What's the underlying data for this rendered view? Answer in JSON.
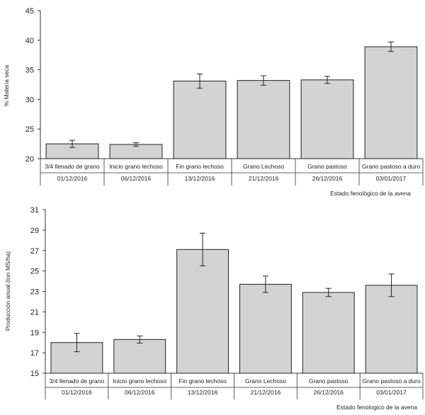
{
  "chart_data": [
    {
      "type": "bar",
      "ylabel": "% Materia seca",
      "xlabel": "Estado fenológico de la avena",
      "ylim": [
        20,
        45
      ],
      "yticks": [
        20,
        25,
        30,
        35,
        40,
        45
      ],
      "categories": [
        "3/4 llenado de grano",
        "Inicio grano lechoso",
        "Fin grano lechoso",
        "Grano Lechoso",
        "Grano pastoso",
        "Grano pastoso a duro"
      ],
      "dates": [
        "01/12/2016",
        "06/12/2016",
        "13/12/2016",
        "21/12/2016",
        "26/12/2016",
        "03/01/2017"
      ],
      "values": [
        22.5,
        22.4,
        33.1,
        33.2,
        33.3,
        38.9
      ],
      "errors": [
        0.6,
        0.3,
        1.2,
        0.8,
        0.6,
        0.8
      ],
      "bar_color": "#d3d3d3",
      "grid": false
    },
    {
      "type": "bar",
      "ylabel": "Producción anual (ton MS/ha)",
      "xlabel": "Estado fenologico de la avena",
      "ylim": [
        15,
        31
      ],
      "yticks": [
        15,
        17,
        19,
        21,
        23,
        25,
        27,
        29,
        31
      ],
      "categories": [
        "3/4 llenado de grano",
        "Inicio grano lechoso",
        "Fin grano lechoso",
        "Grano Lechoso",
        "Grano pastoso",
        "Grano pastoso a duro"
      ],
      "dates": [
        "01/12/2016",
        "06/12/2016",
        "13/12/2016",
        "21/12/2016",
        "26/12/2016",
        "03/01/2017"
      ],
      "values": [
        18.0,
        18.3,
        27.1,
        23.7,
        22.9,
        23.6
      ],
      "errors": [
        0.9,
        0.35,
        1.6,
        0.8,
        0.4,
        1.1
      ],
      "bar_color": "#d3d3d3",
      "grid": false
    }
  ]
}
